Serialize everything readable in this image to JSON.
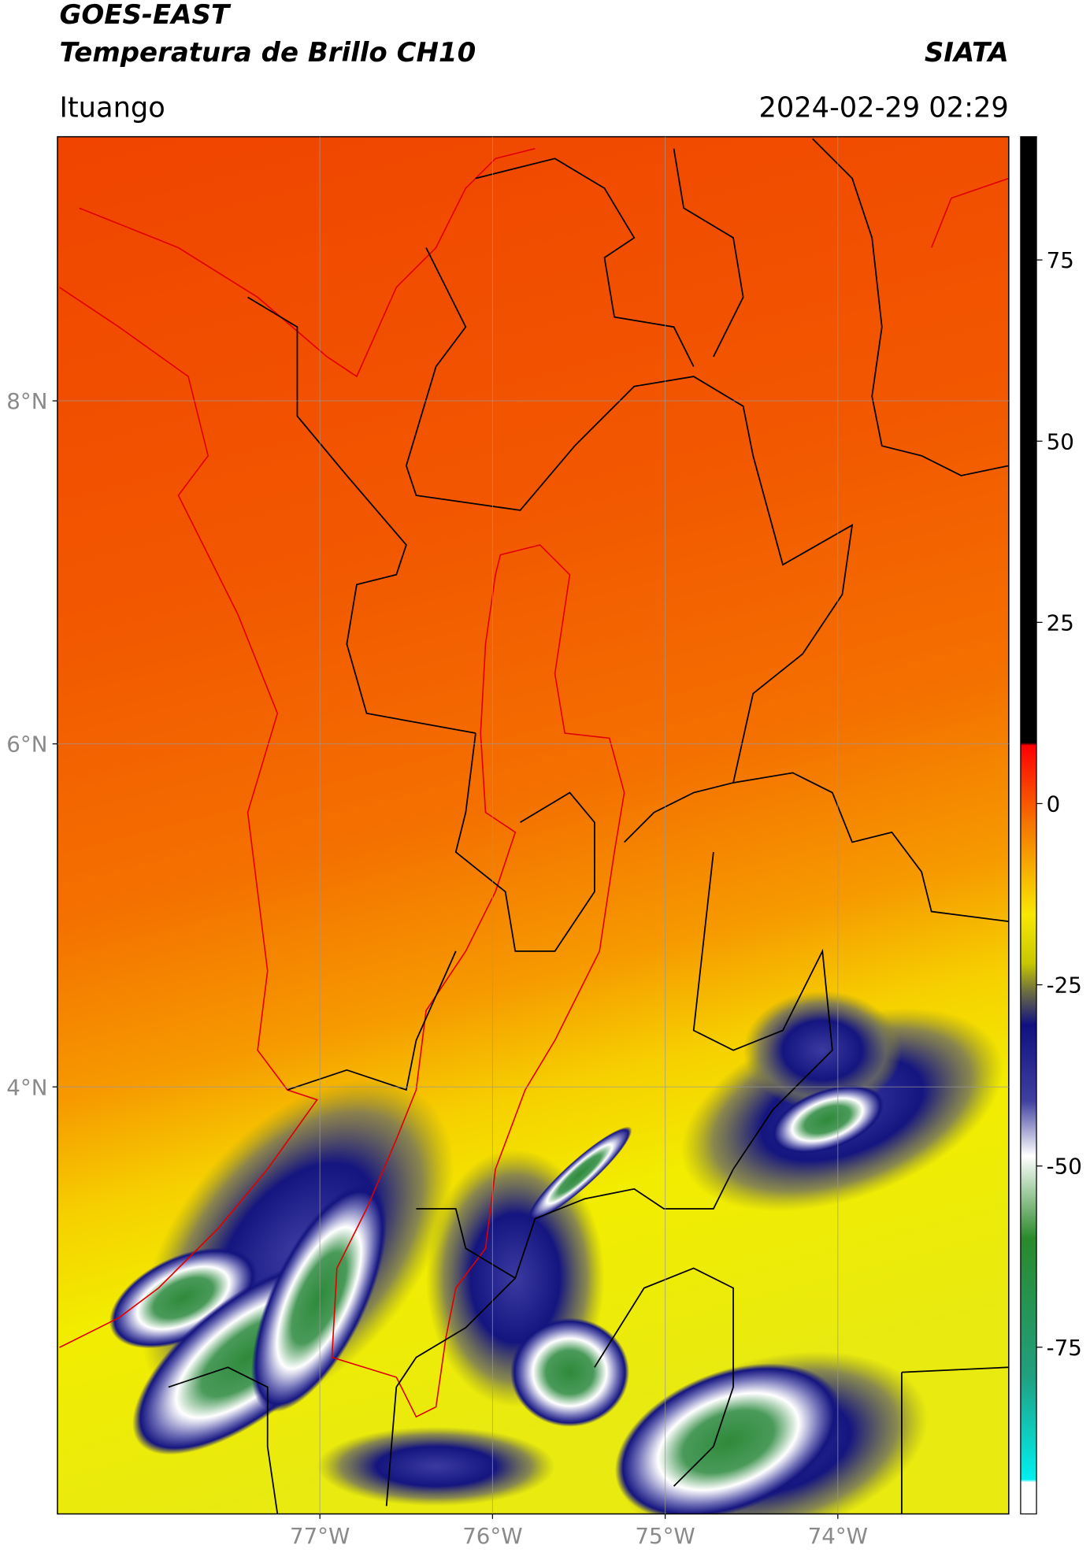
{
  "header": {
    "title": "GOES-EAST",
    "subtitle": "Temperatura de Brillo CH10",
    "source": "SIATA",
    "location": "Ituango",
    "datetime": "2024-02-29 02:29"
  },
  "map": {
    "xlim": [
      -78.52,
      -73.01
    ],
    "ylim": [
      1.51,
      9.54
    ],
    "xticks": [
      {
        "value": -77,
        "label": "77°W"
      },
      {
        "value": -76,
        "label": "76°W"
      },
      {
        "value": -75,
        "label": "75°W"
      },
      {
        "value": -74,
        "label": "74°W"
      }
    ],
    "yticks": [
      {
        "value": 4,
        "label": "4°N"
      },
      {
        "value": 6,
        "label": "6°N"
      },
      {
        "value": 8,
        "label": "8°N"
      }
    ],
    "grid": true
  },
  "colorbar": {
    "lim": [
      -98,
      92
    ],
    "ticks": [
      -75,
      -50,
      -25,
      0,
      25,
      50,
      75
    ]
  }
}
